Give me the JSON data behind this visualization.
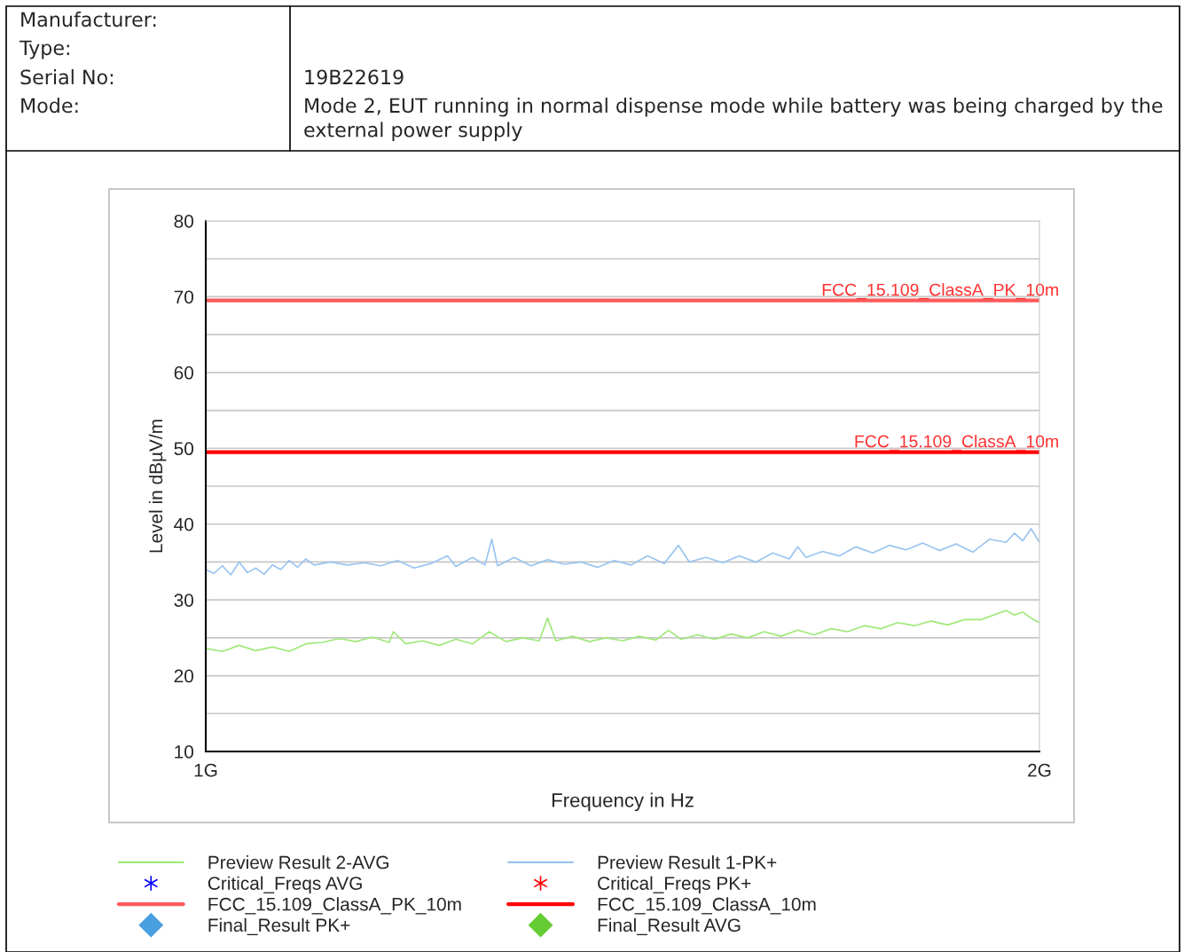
{
  "chart_data": {
    "type": "line",
    "xlabel": "Frequency in Hz",
    "ylabel": "Level in dBµV/m",
    "xlim": [
      1,
      2
    ],
    "xticks": [
      {
        "value": 1,
        "label": "1G"
      },
      {
        "value": 2,
        "label": "2G"
      }
    ],
    "ylim": [
      10,
      80
    ],
    "yticks": [
      10,
      {
        "value": 15,
        "label": null
      },
      20,
      {
        "value": 25,
        "label": null
      },
      30,
      {
        "value": 35,
        "label": null
      },
      40,
      {
        "value": 45,
        "label": null
      },
      50,
      {
        "value": 55,
        "label": null
      },
      60,
      {
        "value": 65,
        "label": null
      },
      70,
      {
        "value": 75,
        "label": null
      },
      80
    ],
    "grid": "y",
    "legend": "bottom",
    "annotations": [
      "Manufacturer:",
      "Type:",
      "Serial No:",
      "19B22619",
      "Mode:",
      "Mode 2, EUT running in normal dispense mode while battery was being charged by the external power supply",
      {
        "text": "FCC_15.109_ClassA_PK_10m",
        "x": 2,
        "y": 69.5
      },
      {
        "text": "FCC_15.109_ClassA_10m",
        "x": 2,
        "y": 49.5
      }
    ],
    "series": [
      {
        "name": "Preview Result 2-AVG",
        "color": "#a0e87a",
        "x": [
          1.0,
          1.02,
          1.04,
          1.06,
          1.08,
          1.1,
          1.12,
          1.14,
          1.16,
          1.18,
          1.2,
          1.22,
          1.225,
          1.24,
          1.26,
          1.28,
          1.3,
          1.32,
          1.34,
          1.36,
          1.38,
          1.4,
          1.41,
          1.42,
          1.44,
          1.46,
          1.48,
          1.5,
          1.52,
          1.54,
          1.555,
          1.57,
          1.59,
          1.61,
          1.63,
          1.65,
          1.67,
          1.69,
          1.71,
          1.73,
          1.75,
          1.77,
          1.79,
          1.81,
          1.83,
          1.85,
          1.87,
          1.89,
          1.91,
          1.93,
          1.95,
          1.96,
          1.97,
          1.98,
          1.99,
          2.0
        ],
        "values": [
          23.6,
          23.2,
          24.0,
          23.3,
          23.8,
          23.2,
          24.2,
          24.4,
          24.9,
          24.5,
          25.1,
          24.4,
          25.8,
          24.2,
          24.6,
          24.0,
          24.8,
          24.2,
          25.8,
          24.5,
          25.0,
          24.6,
          27.6,
          24.6,
          25.2,
          24.5,
          25.0,
          24.6,
          25.2,
          24.7,
          26.0,
          24.8,
          25.4,
          24.8,
          25.5,
          25.0,
          25.8,
          25.2,
          26.0,
          25.4,
          26.2,
          25.8,
          26.6,
          26.2,
          27.0,
          26.6,
          27.2,
          26.7,
          27.4,
          27.4,
          28.2,
          28.6,
          28.0,
          28.4,
          27.6,
          27.0
        ]
      },
      {
        "name": "Critical_Freqs AVG",
        "type": "scatter",
        "marker": "star"
      },
      {
        "name": "FCC_15.109_ClassA_PK_10m",
        "color": "#ff5a5a",
        "x": [
          1,
          2
        ],
        "values": [
          69.5,
          69.5
        ]
      },
      {
        "name": "Final_Result PK+",
        "type": "scatter",
        "marker": "diamond"
      },
      {
        "name": "Preview Result 1-PK+",
        "color": "#99c4f0",
        "x": [
          1.0,
          1.01,
          1.02,
          1.03,
          1.04,
          1.05,
          1.06,
          1.07,
          1.08,
          1.09,
          1.1,
          1.11,
          1.12,
          1.13,
          1.15,
          1.17,
          1.19,
          1.21,
          1.23,
          1.25,
          1.27,
          1.29,
          1.3,
          1.32,
          1.335,
          1.343,
          1.35,
          1.37,
          1.39,
          1.41,
          1.43,
          1.45,
          1.47,
          1.49,
          1.51,
          1.53,
          1.55,
          1.567,
          1.58,
          1.6,
          1.62,
          1.64,
          1.66,
          1.68,
          1.7,
          1.71,
          1.72,
          1.74,
          1.76,
          1.78,
          1.8,
          1.82,
          1.84,
          1.86,
          1.88,
          1.9,
          1.92,
          1.94,
          1.96,
          1.97,
          1.98,
          1.99,
          2.0
        ],
        "values": [
          34.0,
          33.5,
          34.5,
          33.3,
          35.0,
          33.6,
          34.2,
          33.4,
          34.6,
          34.0,
          35.2,
          34.3,
          35.4,
          34.6,
          35.0,
          34.6,
          34.9,
          34.5,
          35.2,
          34.2,
          34.8,
          35.8,
          34.4,
          35.6,
          34.6,
          38.0,
          34.5,
          35.6,
          34.5,
          35.3,
          34.7,
          35.0,
          34.3,
          35.2,
          34.6,
          35.8,
          34.8,
          37.2,
          35.0,
          35.6,
          34.9,
          35.8,
          35.0,
          36.2,
          35.4,
          37.0,
          35.6,
          36.4,
          35.8,
          37.0,
          36.2,
          37.2,
          36.6,
          37.5,
          36.5,
          37.4,
          36.3,
          38.0,
          37.6,
          38.8,
          37.8,
          39.4,
          37.6
        ]
      },
      {
        "name": "Critical_Freqs PK+",
        "type": "scatter",
        "marker": "star"
      },
      {
        "name": "FCC_15.109_ClassA_10m",
        "color": "#ff0000",
        "x": [
          1,
          2
        ],
        "values": [
          49.5,
          49.5
        ]
      },
      {
        "name": "Final_Result AVG",
        "type": "scatter",
        "marker": "diamond"
      }
    ]
  }
}
